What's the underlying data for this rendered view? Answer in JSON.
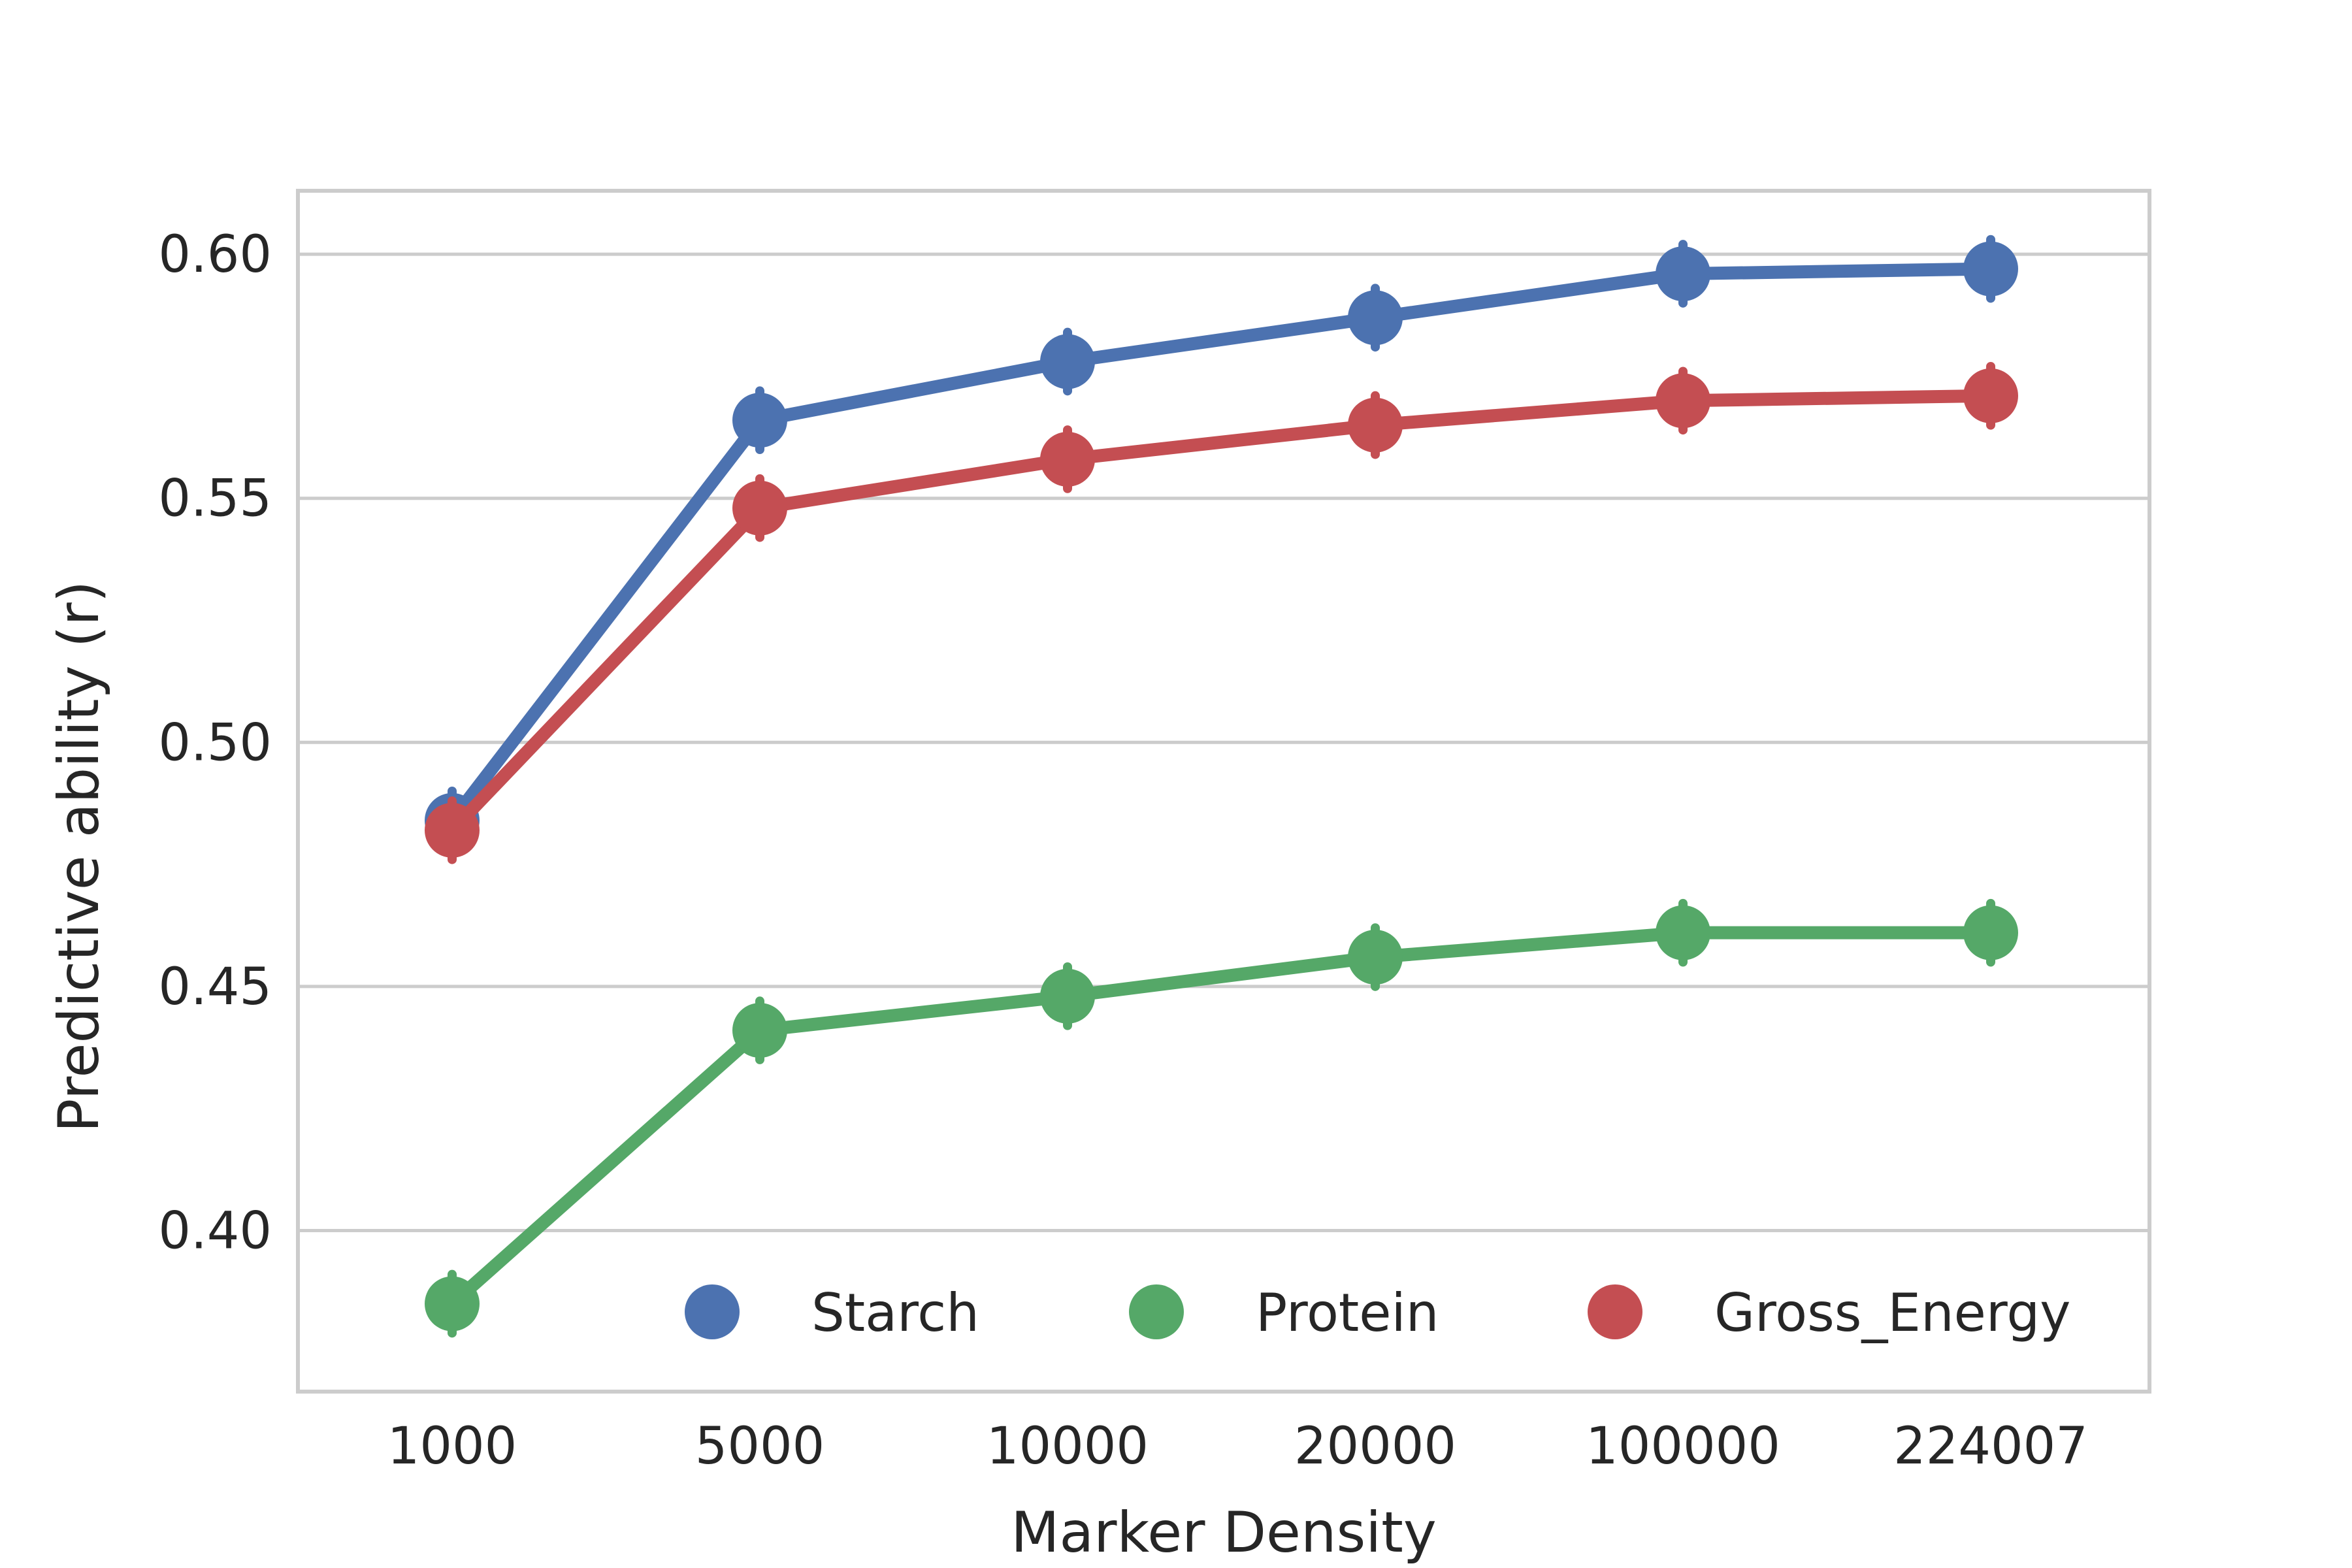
{
  "chart_data": {
    "type": "line",
    "xlabel": "Marker Density",
    "ylabel": "Predictive ability (r)",
    "categories": [
      "1000",
      "5000",
      "10000",
      "20000",
      "100000",
      "224007"
    ],
    "y_ticks": [
      "0.40",
      "0.45",
      "0.50",
      "0.55",
      "0.60"
    ],
    "y_tick_values": [
      0.4,
      0.45,
      0.5,
      0.55,
      0.6
    ],
    "ylim": [
      0.367,
      0.613
    ],
    "grid": "horizontal",
    "legend_position": "bottom-right",
    "series": [
      {
        "name": "Starch",
        "color": "#4c72b0",
        "values": [
          0.484,
          0.566,
          0.578,
          0.587,
          0.596,
          0.597
        ],
        "error": [
          0.006,
          0.006,
          0.006,
          0.006,
          0.006,
          0.006
        ]
      },
      {
        "name": "Protein",
        "color": "#55a868",
        "values": [
          0.385,
          0.441,
          0.448,
          0.456,
          0.461,
          0.461
        ],
        "error": [
          0.006,
          0.006,
          0.006,
          0.006,
          0.006,
          0.006
        ]
      },
      {
        "name": "Gross_Energy",
        "color": "#c44e52",
        "values": [
          0.482,
          0.548,
          0.558,
          0.565,
          0.57,
          0.571
        ],
        "error": [
          0.006,
          0.006,
          0.006,
          0.006,
          0.006,
          0.006
        ]
      }
    ]
  }
}
